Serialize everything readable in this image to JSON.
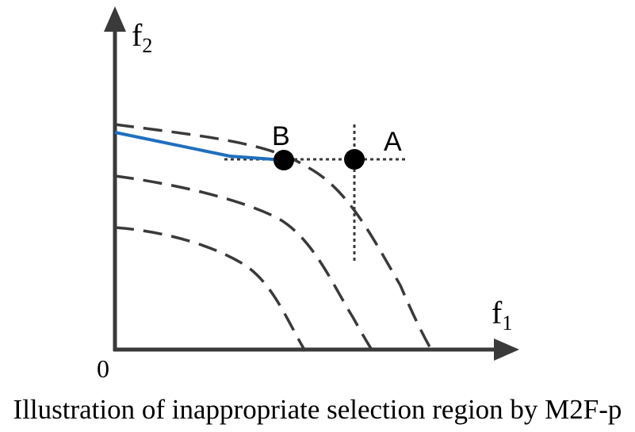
{
  "labels": {
    "y_axis": "f",
    "y_axis_sub": "2",
    "x_axis": "f",
    "x_axis_sub": "1",
    "origin": "0",
    "point_a": "A",
    "point_b": "B"
  },
  "caption": "Illustration of inappropriate selection region by M2F-p",
  "colors": {
    "axes": "#3a3a3a",
    "dashed_curves": "#3a3a3a",
    "highlight_segment": "#1f6fbf",
    "points": "#000000",
    "dotted_lines": "#3a3a3a"
  }
}
